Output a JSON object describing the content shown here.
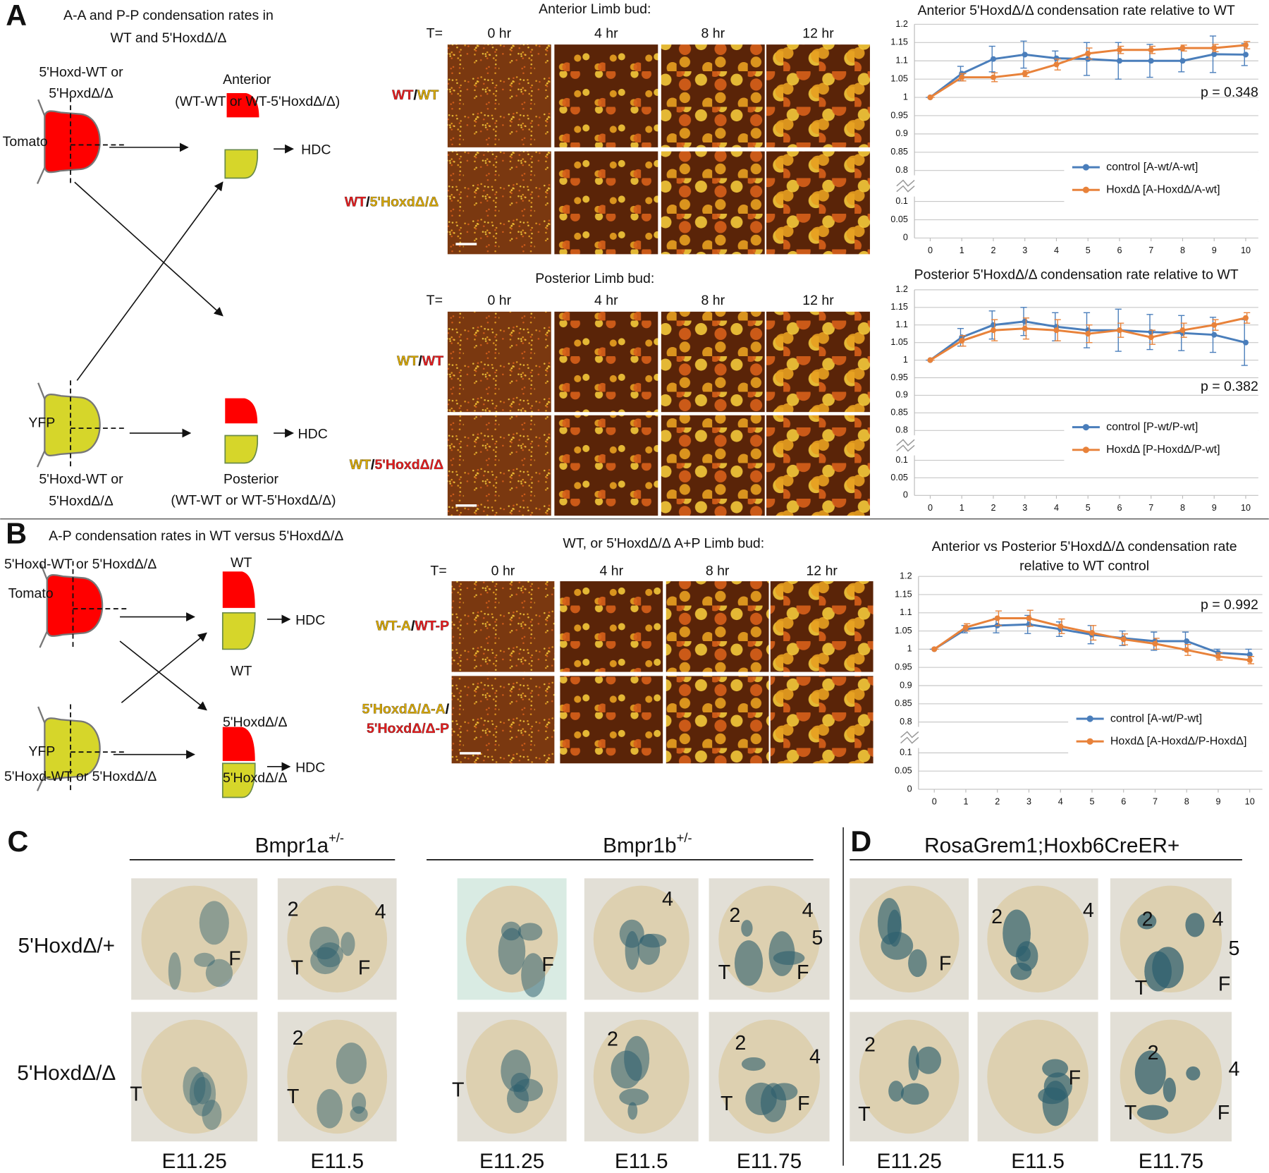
{
  "figure": {
    "A": {
      "letter": "A",
      "diagram": {
        "title": [
          "A-A and P-P condensation rates in",
          "WT and 5'HoxdΔ/Δ"
        ],
        "source_top": [
          "5'Hoxd-WT or",
          "5'HoxdΔ/Δ"
        ],
        "tomato": "Tomato",
        "anterior": [
          "Anterior",
          "(WT-WT or WT-5'HoxdΔ/Δ)"
        ],
        "hdc_top": "HDC",
        "yfp": "YFP",
        "hdc_bottom": "HDC",
        "source_bottom": [
          "5'Hoxd-WT or",
          "5'HoxdΔ/Δ"
        ],
        "posterior": [
          "Posterior",
          "(WT-WT or WT-5'HoxdΔ/Δ)"
        ]
      },
      "anterior_timelapse": {
        "title": "Anterior Limb bud:",
        "time_label": "T=",
        "times": [
          "0 hr",
          "4 hr",
          "8 hr",
          "12 hr"
        ],
        "rows": [
          [
            [
              {
                "text": "WT",
                "color": "#e41a1c"
              },
              {
                "text": "/",
                "color": "#111111"
              },
              {
                "text": "WT",
                "color": "#d9a800"
              }
            ]
          ],
          [
            [
              {
                "text": "WT",
                "color": "#e41a1c"
              },
              {
                "text": "/",
                "color": "#111111"
              },
              {
                "text": "5'HoxdΔ/Δ",
                "color": "#d9a800"
              }
            ]
          ]
        ]
      },
      "posterior_timelapse": {
        "title": "Posterior Limb bud:",
        "time_label": "T=",
        "times": [
          "0 hr",
          "4 hr",
          "8 hr",
          "12 hr"
        ],
        "rows": [
          [
            [
              {
                "text": "WT",
                "color": "#d9a800"
              },
              {
                "text": "/",
                "color": "#111111"
              },
              {
                "text": "WT",
                "color": "#e41a1c"
              }
            ]
          ],
          [
            [
              {
                "text": "WT",
                "color": "#d9a800"
              },
              {
                "text": "/",
                "color": "#111111"
              },
              {
                "text": "5'HoxdΔ/Δ",
                "color": "#e41a1c"
              }
            ]
          ]
        ]
      }
    },
    "B": {
      "letter": "B",
      "diagram": {
        "title": "A-P condensation rates in WT versus  5'HoxdΔ/Δ",
        "source_top": "5'Hoxd-WT or 5'HoxdΔ/Δ",
        "tomato": "Tomato",
        "wt_top": "WT",
        "wt_bottom": "WT",
        "hdc_top": "HDC",
        "hoxd_top": "5'HoxdΔ/Δ",
        "yfp": "YFP",
        "hdc_bottom": "HDC",
        "source_bottom": "5'Hoxd-WT or 5'HoxdΔ/Δ",
        "hoxd_bottom": "5'HoxdΔ/Δ"
      },
      "timelapse": {
        "title": "WT, or 5'HoxdΔ/Δ  A+P Limb bud:",
        "time_label": "T=",
        "times": [
          "0 hr",
          "4 hr",
          "8 hr",
          "12 hr"
        ],
        "rows": [
          [
            [
              {
                "text": "WT-A",
                "color": "#d9a800"
              },
              {
                "text": "/",
                "color": "#111111"
              },
              {
                "text": "WT-P",
                "color": "#e41a1c"
              }
            ]
          ],
          [
            [
              {
                "text": "5'HoxdΔ/Δ-A",
                "color": "#d9a800"
              },
              {
                "text": "/",
                "color": "#111111"
              }
            ],
            [
              {
                "text": "5'HoxdΔ/Δ-P",
                "color": "#e41a1c"
              }
            ]
          ]
        ]
      }
    },
    "C": {
      "letter": "C",
      "groups": [
        {
          "title": "Bmpr1a",
          "superscript": "+/-"
        },
        {
          "title": "Bmpr1b",
          "superscript": "+/-"
        }
      ],
      "row_labels": [
        "5'HoxdΔ/+",
        "5'HoxdΔ/Δ"
      ]
    },
    "D": {
      "letter": "D",
      "title": "RosaGrem1;Hoxb6CreER+"
    },
    "stages": [
      "E11.25",
      "E11.5",
      "E11.25",
      "E11.5",
      "E11.75",
      "E11.25",
      "E11.5",
      "E11.75"
    ],
    "photos": [
      [
        [
          "F"
        ],
        [
          "2",
          "4",
          "T",
          "F"
        ],
        [
          "F"
        ],
        [
          "4"
        ],
        [
          "2",
          "4",
          "5",
          "T",
          "F"
        ],
        [
          "F"
        ],
        [
          "2",
          "4"
        ],
        [
          "2",
          "4",
          "5",
          "T",
          "F"
        ]
      ],
      [
        [
          "T"
        ],
        [
          "2",
          "T"
        ],
        [
          "T"
        ],
        [
          "2"
        ],
        [
          "2",
          "4",
          "T",
          "F"
        ],
        [
          "2",
          "T"
        ],
        [
          "F"
        ],
        [
          "2",
          "4",
          "T",
          "F"
        ]
      ]
    ]
  },
  "chart_data": [
    {
      "type": "line",
      "title": [
        "Anterior 5'HoxdΔ/Δ condensation rate relative to WT"
      ],
      "x": [
        0,
        1,
        2,
        3,
        4,
        5,
        6,
        7,
        8,
        9,
        10
      ],
      "xlim": [
        -0.5,
        10.4
      ],
      "xticks": [
        0,
        1,
        2,
        3,
        4,
        5,
        6,
        7,
        8,
        9,
        10
      ],
      "ylim": [
        0,
        1.2
      ],
      "yticks": [
        0,
        0.05,
        0.1,
        0.8,
        0.85,
        0.9,
        0.95,
        1,
        1.05,
        1.1,
        1.15,
        1.2
      ],
      "axis_break": [
        0.1,
        0.8
      ],
      "grid": true,
      "legend": "lower right",
      "annotation": "p =  0.348",
      "series": [
        {
          "name": "control [A-wt/A-wt]",
          "color": "#4a7ebb",
          "values": [
            1,
            1.065,
            1.105,
            1.117,
            1.107,
            1.105,
            1.1,
            1.1,
            1.1,
            1.118,
            1.117
          ],
          "errors": [
            0,
            0.02,
            0.035,
            0.037,
            0.02,
            0.045,
            0.05,
            0.045,
            0.03,
            0.05,
            0.03
          ]
        },
        {
          "name": "HoxdΔ [A-HoxdΔ/A-wt]",
          "color": "#e8823a",
          "values": [
            1,
            1.055,
            1.055,
            1.065,
            1.09,
            1.12,
            1.13,
            1.13,
            1.135,
            1.135,
            1.143
          ],
          "errors": [
            0,
            0.01,
            0.012,
            0.008,
            0.015,
            0.015,
            0.01,
            0.01,
            0.008,
            0.01,
            0.01
          ]
        }
      ]
    },
    {
      "type": "line",
      "title": [
        "Posterior 5'HoxdΔ/Δ condensation rate relative to WT"
      ],
      "x": [
        0,
        1,
        2,
        3,
        4,
        5,
        6,
        7,
        8,
        9,
        10
      ],
      "xlim": [
        -0.5,
        10.4
      ],
      "xticks": [
        0,
        1,
        2,
        3,
        4,
        5,
        6,
        7,
        8,
        9,
        10
      ],
      "ylim": [
        0,
        1.2
      ],
      "yticks": [
        0,
        0.05,
        0.1,
        0.8,
        0.85,
        0.9,
        0.95,
        1,
        1.05,
        1.1,
        1.15,
        1.2
      ],
      "axis_break": [
        0.1,
        0.8
      ],
      "grid": true,
      "legend": "lower right",
      "annotation": "p =  0.382",
      "series": [
        {
          "name": "control [P-wt/P-wt]",
          "color": "#4a7ebb",
          "values": [
            1,
            1.065,
            1.1,
            1.11,
            1.095,
            1.085,
            1.085,
            1.08,
            1.077,
            1.072,
            1.05
          ],
          "errors": [
            0,
            0.025,
            0.04,
            0.04,
            0.04,
            0.05,
            0.06,
            0.05,
            0.05,
            0.05,
            0.065
          ]
        },
        {
          "name": "HoxdΔ [P-HoxdΔ/P-wt]",
          "color": "#e8823a",
          "values": [
            1,
            1.055,
            1.085,
            1.09,
            1.085,
            1.075,
            1.085,
            1.065,
            1.085,
            1.1,
            1.12
          ],
          "errors": [
            0,
            0.015,
            0.03,
            0.03,
            0.03,
            0.025,
            0.02,
            0.02,
            0.02,
            0.015,
            0.015
          ]
        }
      ]
    },
    {
      "type": "line",
      "title": [
        "Anterior vs Posterior 5'HoxdΔ/Δ condensation rate",
        "relative  to WT control"
      ],
      "x": [
        0,
        1,
        2,
        3,
        4,
        5,
        6,
        7,
        8,
        9,
        10
      ],
      "xlim": [
        -0.5,
        10.4
      ],
      "xticks": [
        0,
        1,
        2,
        3,
        4,
        5,
        6,
        7,
        8,
        9,
        10
      ],
      "ylim": [
        0,
        1.2
      ],
      "yticks": [
        0,
        0.05,
        0.1,
        0.8,
        0.85,
        0.9,
        0.95,
        1,
        1.05,
        1.1,
        1.15,
        1.2
      ],
      "axis_break": [
        0.1,
        0.8
      ],
      "grid": true,
      "legend": "lower right",
      "annotation": "p =  0.992",
      "series": [
        {
          "name": "control [A-wt/P-wt]",
          "color": "#4a7ebb",
          "values": [
            1,
            1.055,
            1.065,
            1.068,
            1.055,
            1.04,
            1.03,
            1.022,
            1.022,
            0.99,
            0.985
          ],
          "errors": [
            0,
            0.01,
            0.02,
            0.025,
            0.02,
            0.025,
            0.02,
            0.025,
            0.025,
            0.01,
            0.015
          ]
        },
        {
          "name": "HoxdΔ [A-HoxdΔ/P-HoxdΔ]",
          "color": "#e8823a",
          "values": [
            1,
            1.06,
            1.085,
            1.085,
            1.063,
            1.045,
            1.027,
            1.015,
            0.998,
            0.98,
            0.97
          ],
          "errors": [
            0,
            0.01,
            0.02,
            0.022,
            0.02,
            0.02,
            0.015,
            0.015,
            0.015,
            0.01,
            0.01
          ]
        }
      ]
    }
  ]
}
